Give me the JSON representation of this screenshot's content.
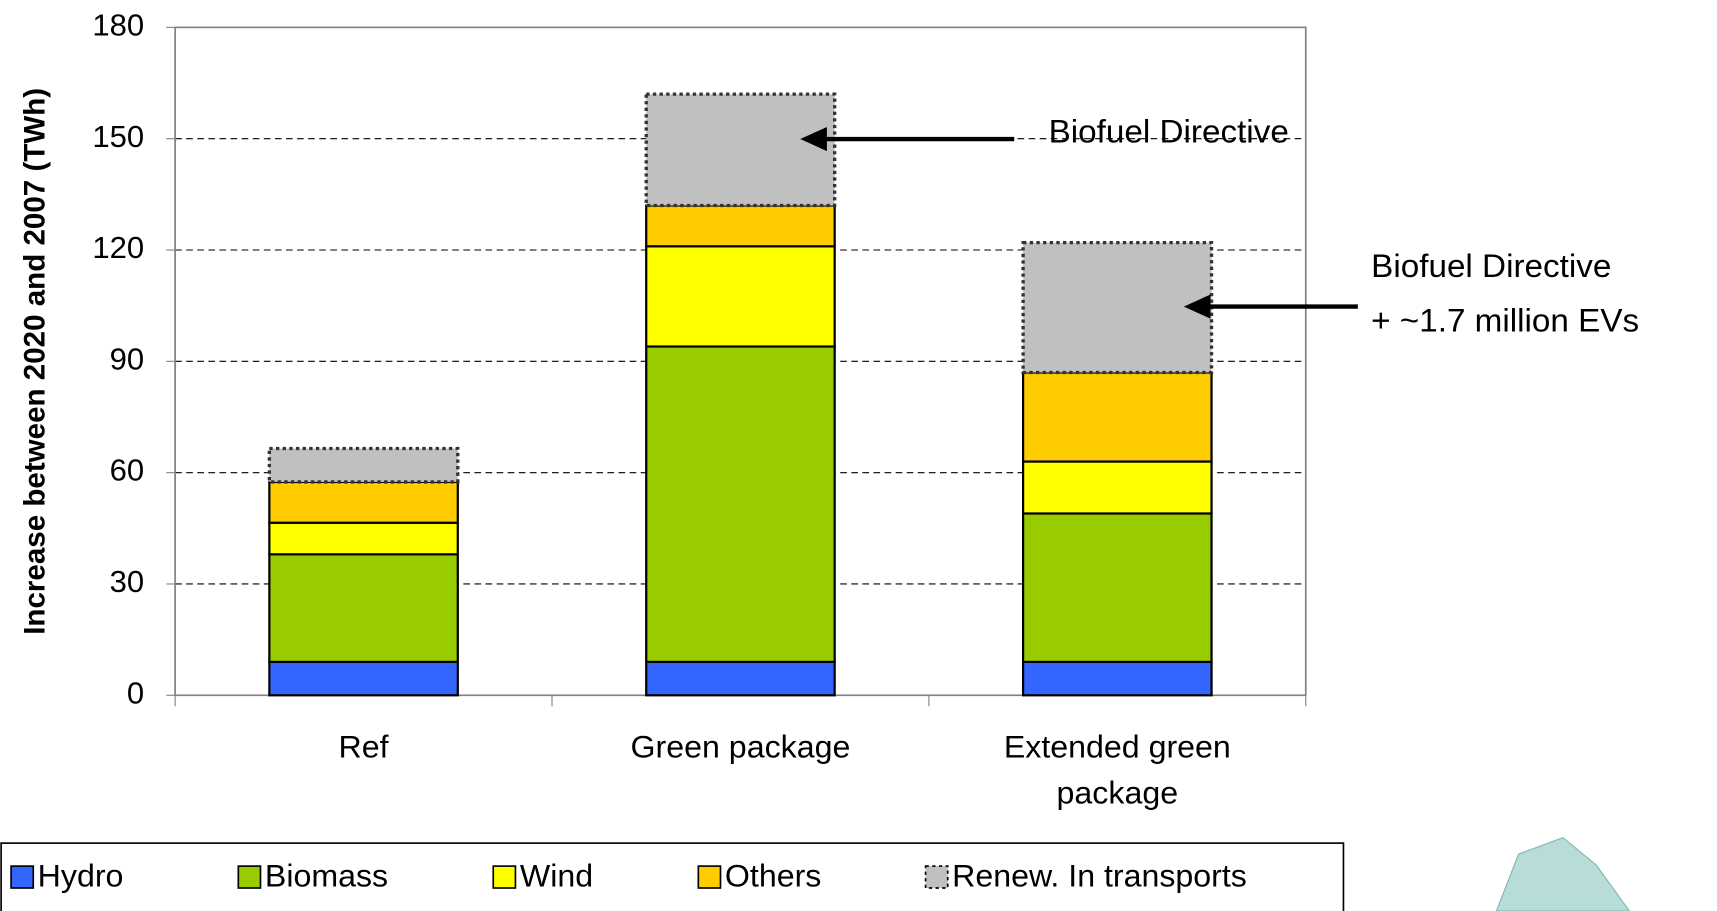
{
  "chart_data": {
    "type": "stacked_bar",
    "y_label": "Increase between 2020 and 2007 (TWh)",
    "categories": [
      "Ref",
      "Green package",
      "Extended green package"
    ],
    "series": [
      {
        "name": "Hydro",
        "color": "#3366ff",
        "values": [
          9,
          9,
          9
        ]
      },
      {
        "name": "Biomass",
        "color": "#99cc00",
        "values": [
          29,
          85,
          40
        ]
      },
      {
        "name": "Wind",
        "color": "#ffff00",
        "values": [
          8.5,
          27,
          14
        ]
      },
      {
        "name": "Others",
        "color": "#ffcc00",
        "values": [
          11,
          11,
          24
        ]
      },
      {
        "name": "Renew. In transports",
        "color": "#c0c0c0",
        "values": [
          9,
          30,
          35
        ]
      }
    ],
    "ylim": [
      0,
      180
    ],
    "yticks": [
      0,
      30,
      60,
      90,
      120,
      150,
      180
    ],
    "grid": true,
    "annotations": [
      {
        "lines": [
          "Biofuel Directive"
        ]
      },
      {
        "lines": [
          "Biofuel Directive",
          "+ ~1.7 million EVs"
        ]
      }
    ]
  }
}
